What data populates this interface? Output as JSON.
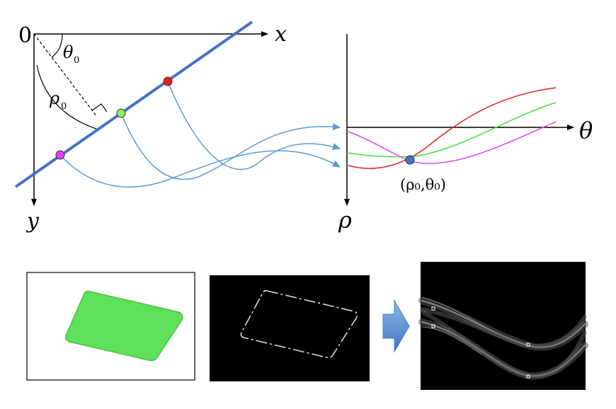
{
  "labels": {
    "origin": "0",
    "x_axis": "x",
    "y_axis": "y",
    "theta0": "θ",
    "theta0_sub": "0",
    "rho0": "ρ",
    "rho0_sub": "0",
    "theta_axis": "θ",
    "rho_axis": "ρ",
    "intersection": "(ρ₀,θ₀)"
  },
  "colors": {
    "line": "#4472c4",
    "connector": "#5b9bd5",
    "point_red": "#e02020",
    "point_green": "#8ef060",
    "point_magenta": "#e040f0",
    "intersection_point": "#4a72c8",
    "curve_red": "#e02020",
    "curve_green": "#40e040",
    "curve_magenta": "#e040f0",
    "green_card": "#5fe05a",
    "arrow_fill": "#5b9bd5"
  },
  "icons": {
    "process_arrow": "right-arrow-icon"
  }
}
